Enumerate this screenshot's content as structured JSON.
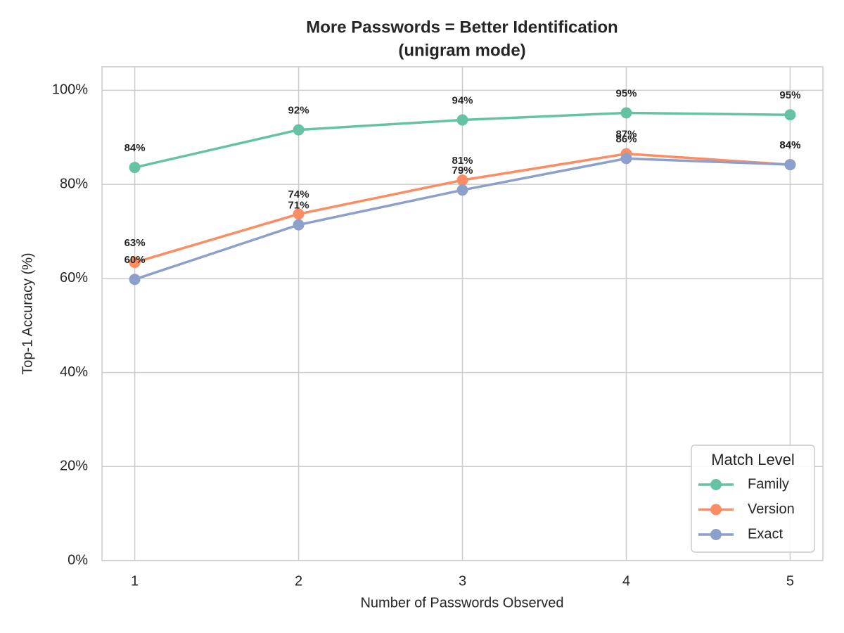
{
  "chart_data": {
    "type": "line",
    "title": "More Passwords = Better Identification",
    "subtitle": "(unigram mode)",
    "x_label": "Number of Passwords Observed",
    "y_label": "Top-1 Accuracy (%)",
    "x": [
      1,
      2,
      3,
      4,
      5
    ],
    "xlim": [
      0.8,
      5.2
    ],
    "xticks": [
      1,
      2,
      3,
      4,
      5
    ],
    "ylim": [
      0,
      105
    ],
    "yticks": [
      {
        "value": 0,
        "label": "0%"
      },
      {
        "value": 20,
        "label": "20%"
      },
      {
        "value": 40,
        "label": "40%"
      },
      {
        "value": 60,
        "label": "60%"
      },
      {
        "value": 80,
        "label": "80%"
      },
      {
        "value": 100,
        "label": "100%"
      }
    ],
    "grid": true,
    "legend_title": "Match Level",
    "legend_position": "lower-right",
    "series": [
      {
        "name": "Family",
        "color": "#66c2a5",
        "values": [
          83.6,
          91.6,
          93.7,
          95.2,
          94.8
        ],
        "value_labels": [
          "84%",
          "92%",
          "94%",
          "95%",
          "95%"
        ]
      },
      {
        "name": "Version",
        "color": "#fc8d62",
        "values": [
          63.4,
          73.7,
          80.9,
          86.5,
          84.2
        ],
        "value_labels": [
          "63%",
          "74%",
          "81%",
          "87%",
          "84%"
        ]
      },
      {
        "name": "Exact",
        "color": "#8da0cb",
        "values": [
          59.8,
          71.4,
          78.8,
          85.5,
          84.2
        ],
        "value_labels": [
          "60%",
          "71%",
          "79%",
          "86%",
          "84%"
        ]
      }
    ]
  }
}
